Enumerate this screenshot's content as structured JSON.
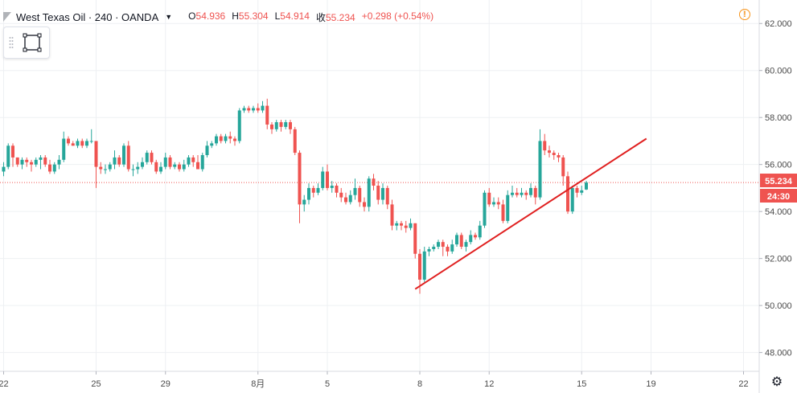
{
  "header": {
    "symbol_title": "West Texas Oil · 240 · OANDA",
    "ohlc": [
      {
        "key": "O",
        "value": "54.936"
      },
      {
        "key": "H",
        "value": "55.304"
      },
      {
        "key": "L",
        "value": "54.914"
      },
      {
        "key": "收",
        "value": "55.234"
      },
      {
        "key": "",
        "value": "+0.298 (+0.54%)"
      }
    ]
  },
  "icons": {
    "alert": "exclamation-circle-icon",
    "settings": "gear-icon",
    "drawing_tool": "rectangle-tool-icon"
  },
  "colors": {
    "up": "#26a69a",
    "down": "#ef5350",
    "trendline": "#e02020",
    "price_line": "#ef5350",
    "grid": "#eef0f3",
    "axis_text": "#4a4a4a"
  },
  "chart_data": {
    "type": "candlestick",
    "title": "West Texas Oil · 240 · OANDA",
    "ylim": [
      47.2,
      63.0
    ],
    "y_ticks": [
      "48.000",
      "50.000",
      "52.000",
      "54.000",
      "56.000",
      "58.000",
      "60.000",
      "62.000"
    ],
    "x_ticks": [
      {
        "label": "22",
        "idx": 0
      },
      {
        "label": "25",
        "idx": 20
      },
      {
        "label": "29",
        "idx": 35
      },
      {
        "label": "8月",
        "idx": 55
      },
      {
        "label": "5",
        "idx": 70
      },
      {
        "label": "8",
        "idx": 90
      },
      {
        "label": "12",
        "idx": 105
      },
      {
        "label": "15",
        "idx": 125
      },
      {
        "label": "19",
        "idx": 140
      },
      {
        "label": "22",
        "idx": 160
      }
    ],
    "last_price": {
      "value": 55.234,
      "label": "55.234",
      "countdown": "24:30"
    },
    "trendline": {
      "start": {
        "idx": 89,
        "price": 50.7
      },
      "end": {
        "idx": 139,
        "price": 57.1
      }
    },
    "candles": [
      [
        55.7,
        55.9,
        56.1,
        55.5
      ],
      [
        55.9,
        56.8,
        56.9,
        55.8
      ],
      [
        56.8,
        56.3,
        56.9,
        55.9
      ],
      [
        56.3,
        56.0,
        56.3,
        55.9
      ],
      [
        56.0,
        56.2,
        56.3,
        55.8
      ],
      [
        56.2,
        56.1,
        56.3,
        55.9
      ],
      [
        56.1,
        56.0,
        56.2,
        55.7
      ],
      [
        56.0,
        56.2,
        56.3,
        55.9
      ],
      [
        56.2,
        56.3,
        56.4,
        55.8
      ],
      [
        56.3,
        56.0,
        56.4,
        55.9
      ],
      [
        56.0,
        55.7,
        56.2,
        55.6
      ],
      [
        55.7,
        56.0,
        56.1,
        55.6
      ],
      [
        56.0,
        56.2,
        56.4,
        55.8
      ],
      [
        56.2,
        57.1,
        57.4,
        56.1
      ],
      [
        57.1,
        56.9,
        57.2,
        56.8
      ],
      [
        56.9,
        56.8,
        57.0,
        56.8
      ],
      [
        56.8,
        57.0,
        57.1,
        56.7
      ],
      [
        57.0,
        56.8,
        57.1,
        56.7
      ],
      [
        56.8,
        57.0,
        57.1,
        56.7
      ],
      [
        57.0,
        57.0,
        57.5,
        56.9
      ],
      [
        57.0,
        55.9,
        57.0,
        55.0
      ],
      [
        55.9,
        55.8,
        56.1,
        55.6
      ],
      [
        55.8,
        55.8,
        56.0,
        55.6
      ],
      [
        55.8,
        56.0,
        56.1,
        55.7
      ],
      [
        56.0,
        56.3,
        56.6,
        55.8
      ],
      [
        56.3,
        56.0,
        56.4,
        55.9
      ],
      [
        56.0,
        56.8,
        56.9,
        55.9
      ],
      [
        56.8,
        55.8,
        57.0,
        55.7
      ],
      [
        55.8,
        55.8,
        56.0,
        55.5
      ],
      [
        55.8,
        55.9,
        56.1,
        55.6
      ],
      [
        55.9,
        56.1,
        56.3,
        55.8
      ],
      [
        56.1,
        56.5,
        56.6,
        56.0
      ],
      [
        56.5,
        56.1,
        56.6,
        56.0
      ],
      [
        56.1,
        55.7,
        56.2,
        55.6
      ],
      [
        55.7,
        55.9,
        56.1,
        55.6
      ],
      [
        55.9,
        56.3,
        56.5,
        55.8
      ],
      [
        56.3,
        55.9,
        56.4,
        55.8
      ],
      [
        55.9,
        56.0,
        56.1,
        55.8
      ],
      [
        56.0,
        55.8,
        56.1,
        55.7
      ],
      [
        55.8,
        56.0,
        56.2,
        55.7
      ],
      [
        56.0,
        56.3,
        56.4,
        55.9
      ],
      [
        56.3,
        56.1,
        56.4,
        55.9
      ],
      [
        56.1,
        55.8,
        56.4,
        55.8
      ],
      [
        55.8,
        56.4,
        56.5,
        55.7
      ],
      [
        56.4,
        56.8,
        57.0,
        56.3
      ],
      [
        56.8,
        56.9,
        57.0,
        56.7
      ],
      [
        56.9,
        57.2,
        57.3,
        56.8
      ],
      [
        57.2,
        57.0,
        57.3,
        56.9
      ],
      [
        57.0,
        57.2,
        57.3,
        56.9
      ],
      [
        57.2,
        57.1,
        57.4,
        56.9
      ],
      [
        57.1,
        57.0,
        57.2,
        56.8
      ],
      [
        57.0,
        58.3,
        58.4,
        56.9
      ],
      [
        58.3,
        58.4,
        58.5,
        58.2
      ],
      [
        58.4,
        58.3,
        58.5,
        58.2
      ],
      [
        58.3,
        58.4,
        58.5,
        58.2
      ],
      [
        58.4,
        58.3,
        58.6,
        58.2
      ],
      [
        58.3,
        58.5,
        58.7,
        58.2
      ],
      [
        58.5,
        57.7,
        58.8,
        57.5
      ],
      [
        57.7,
        57.5,
        57.8,
        57.3
      ],
      [
        57.5,
        57.8,
        57.9,
        57.4
      ],
      [
        57.8,
        57.6,
        57.9,
        57.4
      ],
      [
        57.6,
        57.8,
        57.9,
        57.5
      ],
      [
        57.8,
        57.5,
        57.9,
        57.3
      ],
      [
        57.5,
        56.5,
        57.6,
        56.4
      ],
      [
        56.5,
        54.3,
        56.6,
        53.5
      ],
      [
        54.3,
        54.5,
        54.7,
        54.0
      ],
      [
        54.5,
        55.0,
        55.2,
        54.3
      ],
      [
        55.0,
        54.8,
        55.1,
        54.6
      ],
      [
        54.8,
        55.0,
        55.2,
        54.7
      ],
      [
        55.0,
        55.7,
        55.9,
        54.9
      ],
      [
        55.7,
        55.0,
        56.0,
        54.9
      ],
      [
        55.0,
        55.1,
        55.3,
        54.8
      ],
      [
        55.1,
        54.8,
        55.2,
        54.6
      ],
      [
        54.8,
        54.6,
        55.0,
        54.4
      ],
      [
        54.6,
        54.4,
        54.8,
        54.3
      ],
      [
        54.4,
        54.7,
        54.9,
        54.3
      ],
      [
        54.7,
        55.0,
        55.4,
        54.5
      ],
      [
        55.0,
        54.4,
        55.1,
        54.2
      ],
      [
        54.4,
        54.2,
        54.6,
        54.0
      ],
      [
        54.2,
        55.4,
        55.5,
        54.0
      ],
      [
        55.4,
        55.1,
        55.6,
        54.9
      ],
      [
        55.1,
        54.5,
        55.3,
        54.3
      ],
      [
        54.5,
        55.0,
        55.2,
        54.3
      ],
      [
        55.0,
        54.3,
        55.1,
        54.1
      ],
      [
        54.3,
        53.4,
        54.5,
        53.2
      ],
      [
        53.4,
        53.5,
        53.6,
        53.2
      ],
      [
        53.5,
        53.4,
        53.6,
        53.2
      ],
      [
        53.4,
        53.3,
        53.6,
        53.1
      ],
      [
        53.3,
        53.5,
        53.7,
        53.2
      ],
      [
        53.5,
        52.2,
        53.5,
        52.0
      ],
      [
        52.2,
        51.1,
        52.4,
        50.5
      ],
      [
        51.1,
        52.3,
        52.5,
        51.0
      ],
      [
        52.3,
        52.4,
        52.5,
        52.1
      ],
      [
        52.4,
        52.5,
        52.6,
        52.3
      ],
      [
        52.5,
        52.7,
        52.8,
        52.4
      ],
      [
        52.7,
        52.5,
        52.8,
        52.1
      ],
      [
        52.5,
        52.3,
        52.6,
        52.1
      ],
      [
        52.3,
        52.6,
        52.8,
        52.2
      ],
      [
        52.6,
        53.0,
        53.1,
        52.5
      ],
      [
        53.0,
        52.5,
        53.1,
        52.4
      ],
      [
        52.5,
        52.7,
        52.8,
        52.3
      ],
      [
        52.7,
        53.0,
        53.2,
        52.6
      ],
      [
        53.0,
        52.9,
        53.1,
        52.8
      ],
      [
        52.9,
        53.4,
        53.6,
        52.8
      ],
      [
        53.4,
        54.8,
        54.9,
        53.3
      ],
      [
        54.8,
        54.3,
        55.0,
        54.2
      ],
      [
        54.3,
        54.4,
        54.6,
        54.2
      ],
      [
        54.4,
        54.3,
        54.6,
        54.1
      ],
      [
        54.3,
        53.6,
        54.5,
        53.5
      ],
      [
        53.6,
        54.7,
        54.9,
        53.5
      ],
      [
        54.7,
        54.8,
        55.1,
        54.6
      ],
      [
        54.8,
        54.7,
        55.0,
        54.6
      ],
      [
        54.7,
        54.8,
        55.0,
        54.6
      ],
      [
        54.8,
        54.7,
        54.9,
        54.5
      ],
      [
        54.7,
        55.0,
        55.2,
        54.6
      ],
      [
        55.0,
        54.6,
        55.1,
        54.3
      ],
      [
        54.6,
        57.0,
        57.5,
        54.5
      ],
      [
        57.0,
        56.6,
        57.3,
        56.4
      ],
      [
        56.6,
        56.5,
        56.8,
        56.3
      ],
      [
        56.5,
        56.4,
        56.6,
        56.2
      ],
      [
        56.4,
        56.3,
        56.5,
        56.1
      ],
      [
        56.3,
        55.5,
        56.4,
        55.1
      ],
      [
        55.5,
        54.0,
        55.7,
        53.9
      ],
      [
        54.0,
        55.0,
        55.1,
        53.9
      ],
      [
        55.0,
        54.8,
        55.1,
        54.6
      ],
      [
        54.8,
        54.9,
        55.1,
        54.7
      ],
      [
        54.936,
        55.234,
        55.304,
        54.914
      ]
    ]
  },
  "axis_fmt": "decimals3"
}
